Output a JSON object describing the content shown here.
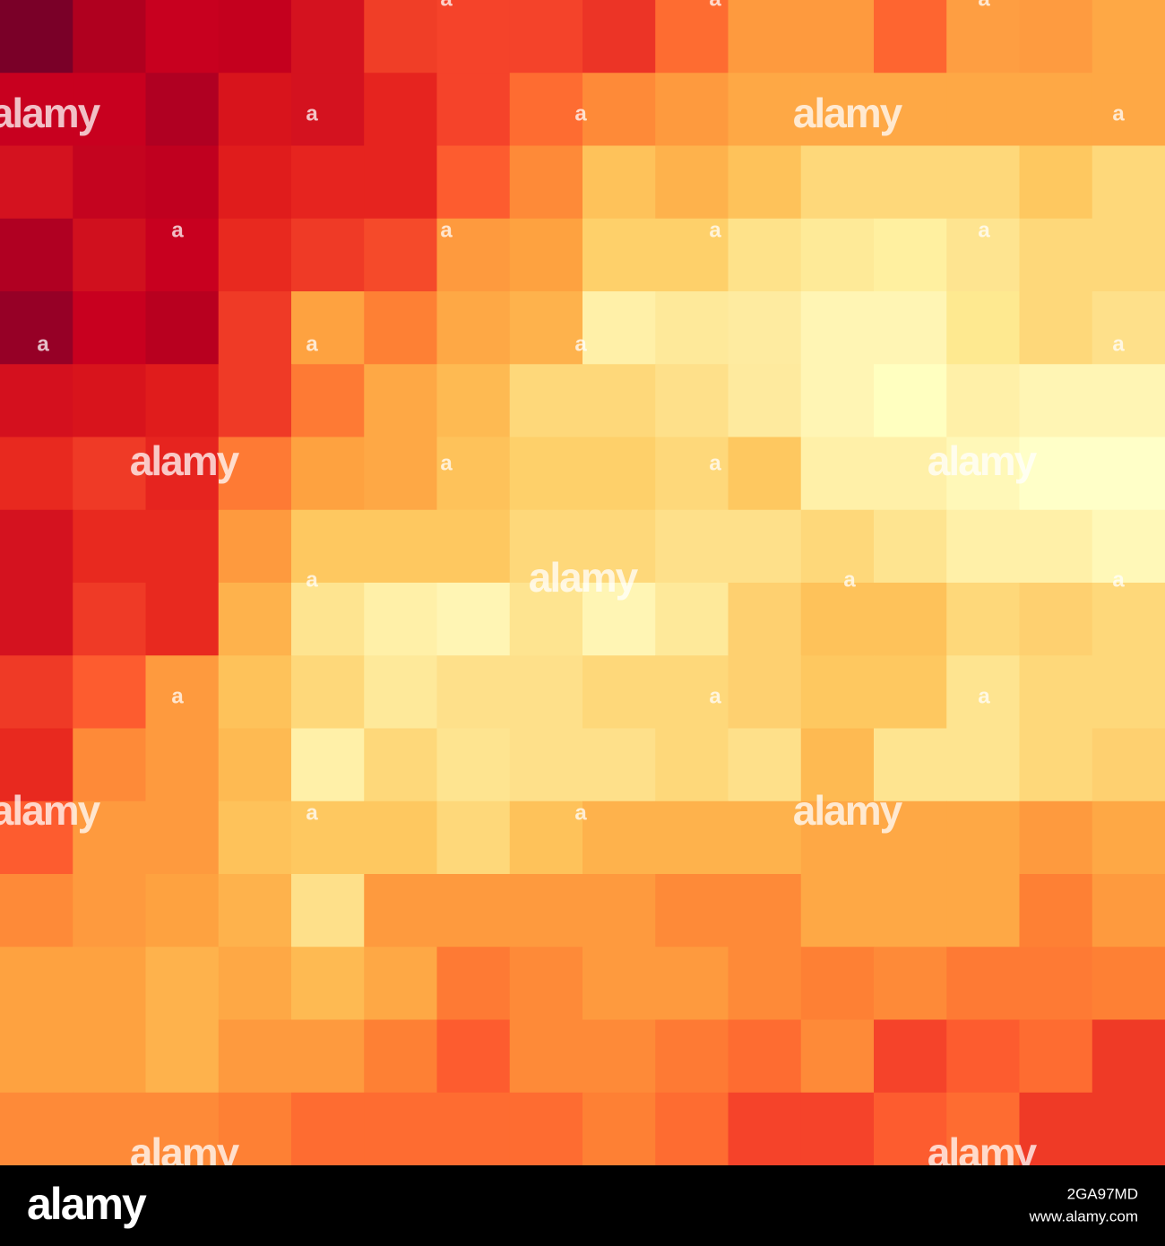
{
  "mosaic": {
    "rows": [
      [
        "#7a0028",
        "#b0001f",
        "#c8001f",
        "#c4001e",
        "#d4121f",
        "#f03e27",
        "#f5432a",
        "#f4432a",
        "#ec3426",
        "#fe6c31",
        "#fe9a3e",
        "#fe9a3e",
        "#fe6530",
        "#fe9e42",
        "#fe9b40",
        "#fea845"
      ],
      [
        "#c8001f",
        "#c8001f",
        "#b00022",
        "#d8141c",
        "#d4121f",
        "#e6241f",
        "#f5432a",
        "#fe6c31",
        "#fe8a38",
        "#fe9a3e",
        "#fea845",
        "#fea845",
        "#fea845",
        "#fea845",
        "#fea845",
        "#fea845"
      ],
      [
        "#d4121f",
        "#c4041f",
        "#c0001f",
        "#e01c1c",
        "#e6241f",
        "#e6241f",
        "#fd5c2f",
        "#fe8a38",
        "#fec25a",
        "#feb24c",
        "#fec25a",
        "#fed87a",
        "#fed87a",
        "#fed87a",
        "#fec860",
        "#fed87a"
      ],
      [
        "#b00022",
        "#d0101e",
        "#c8001f",
        "#e8291f",
        "#ef3a26",
        "#f54a2a",
        "#fe9a3e",
        "#fea240",
        "#fed06a",
        "#fed06a",
        "#fee28a",
        "#feea98",
        "#fff0a0",
        "#fee490",
        "#fed87a",
        "#fed87a"
      ],
      [
        "#960026",
        "#c8001f",
        "#b8001f",
        "#ef3a26",
        "#fea240",
        "#fe8034",
        "#fea845",
        "#feb24c",
        "#fff0a8",
        "#fee99a",
        "#feeba0",
        "#fff5b4",
        "#fff5b4",
        "#fee990",
        "#fed87a",
        "#fee08a"
      ],
      [
        "#d4101e",
        "#d8141c",
        "#e01c1c",
        "#ef3a26",
        "#fe7a34",
        "#fea845",
        "#feba52",
        "#fed87a",
        "#fed87a",
        "#fee08a",
        "#feea9e",
        "#fff5b4",
        "#ffffc0",
        "#fff0a8",
        "#fff5b4",
        "#fff5b4"
      ],
      [
        "#e8291f",
        "#ef3a26",
        "#e6241f",
        "#fe7a34",
        "#fea240",
        "#fea845",
        "#fec25a",
        "#fed06a",
        "#fed06a",
        "#fed87a",
        "#fec860",
        "#fff0a8",
        "#fff0a8",
        "#fff8b8",
        "#ffffc8",
        "#ffffc8"
      ],
      [
        "#d4121f",
        "#e8291f",
        "#e8291f",
        "#fe9a3e",
        "#fec860",
        "#fec860",
        "#fec860",
        "#fed87a",
        "#fed87a",
        "#fee08a",
        "#fee08a",
        "#fed87a",
        "#fee490",
        "#fff0a8",
        "#fff0a8",
        "#fff8b8"
      ],
      [
        "#d4121f",
        "#ef3a26",
        "#e8291f",
        "#feb24c",
        "#fee490",
        "#fff0a8",
        "#fff5b4",
        "#fee490",
        "#fff5b4",
        "#fee99a",
        "#fed070",
        "#fec25a",
        "#fec25a",
        "#fed87a",
        "#fed070",
        "#fed87a"
      ],
      [
        "#ef3a26",
        "#fd5c2f",
        "#fe9a3e",
        "#fec25a",
        "#fed87a",
        "#fee99a",
        "#fee08a",
        "#fee08a",
        "#fed87a",
        "#fed87a",
        "#fed070",
        "#fec860",
        "#fec860",
        "#fee490",
        "#fed87a",
        "#fed87a"
      ],
      [
        "#e8291f",
        "#fe8a38",
        "#fe9a3e",
        "#feba52",
        "#fff0a8",
        "#fed87a",
        "#fee490",
        "#fee08a",
        "#fee08a",
        "#fed87a",
        "#fee08a",
        "#feba52",
        "#fee490",
        "#fee490",
        "#fed87a",
        "#fed070"
      ],
      [
        "#fd5c2f",
        "#fe9a3e",
        "#fe9a3e",
        "#fec25a",
        "#fec860",
        "#fec860",
        "#fed87a",
        "#fec25a",
        "#feb24c",
        "#feb24c",
        "#feb24c",
        "#fea845",
        "#fea845",
        "#fea845",
        "#fe9a3e",
        "#fea845"
      ],
      [
        "#fe8a38",
        "#fe9a3e",
        "#fea240",
        "#feb24c",
        "#fee08a",
        "#fe9a3e",
        "#fe9a3e",
        "#fe9a3e",
        "#fe9a3e",
        "#fe8a38",
        "#fe8a38",
        "#fea845",
        "#fea845",
        "#fea845",
        "#fe8034",
        "#fe9a3e"
      ],
      [
        "#fea240",
        "#fea240",
        "#feb24c",
        "#fea845",
        "#feba52",
        "#fea845",
        "#fe7a34",
        "#fe8a38",
        "#fe9a3e",
        "#fe9a3e",
        "#fe8a38",
        "#fe8034",
        "#fe8a38",
        "#fe7a34",
        "#fe7a34",
        "#fe8034"
      ],
      [
        "#fea240",
        "#fea240",
        "#feb24c",
        "#fe9a3e",
        "#fe9a3e",
        "#fe8034",
        "#fd5c2f",
        "#fe8a38",
        "#fe8a38",
        "#fe7a34",
        "#fe6c31",
        "#fe8a38",
        "#f5432a",
        "#fd5c2f",
        "#fe6c31",
        "#ef3a26"
      ],
      [
        "#fe8a38",
        "#fe8a38",
        "#fe8a38",
        "#fe8034",
        "#fe6c31",
        "#fe6c31",
        "#fe6c31",
        "#fe6c31",
        "#fe8034",
        "#fe6c31",
        "#f5432a",
        "#f5432a",
        "#fd5c2f",
        "#fe6c31",
        "#ef3a26",
        "#ef3a26"
      ]
    ]
  },
  "watermarks": [
    "alamy",
    "alamy",
    "alamy",
    "alamy",
    "alamy",
    "alamy",
    "alamy",
    "alamy",
    "alamy",
    "a",
    "a",
    "a",
    "a",
    "a",
    "a",
    "a",
    "a",
    "a",
    "a",
    "a",
    "a",
    "a",
    "a",
    "a",
    "a",
    "a",
    "a",
    "a",
    "a",
    "a",
    "a",
    "a",
    "a"
  ],
  "footer": {
    "logo": "alamy",
    "image_id": "2GA97MD",
    "url": "www.alamy.com"
  }
}
